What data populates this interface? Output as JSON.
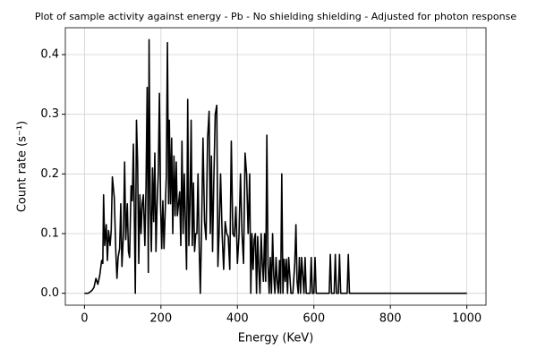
{
  "chart_data": {
    "type": "line",
    "title": "Plot of sample activity against energy - Pb - No shielding shielding - Adjusted for photon response",
    "x_label": "Energy (KeV)",
    "y_label": "Count rate (s⁻¹)",
    "xlim": [
      -50,
      1050
    ],
    "ylim": [
      -0.02,
      0.445
    ],
    "xticks": [
      0,
      200,
      400,
      600,
      800,
      1000
    ],
    "yticks": [
      {
        "value": 0,
        "label": "0.0"
      },
      0.1,
      0.2,
      0.3,
      0.4
    ],
    "grid": true,
    "series": [
      {
        "color": "#000000",
        "x": [
          0,
          10,
          20,
          25,
          30,
          35,
          40,
          45,
          48,
          50,
          53,
          57,
          60,
          63,
          67,
          70,
          73,
          78,
          82,
          85,
          88,
          92,
          95,
          98,
          102,
          105,
          108,
          112,
          115,
          118,
          122,
          125,
          128,
          131,
          133,
          136,
          139,
          142,
          145,
          148,
          151,
          154,
          158,
          161,
          164,
          167,
          169,
          172,
          175,
          178,
          181,
          184,
          187,
          190,
          193,
          196,
          199,
          202,
          205,
          208,
          211,
          214,
          217,
          220,
          222,
          225,
          228,
          231,
          234,
          237,
          240,
          243,
          246,
          249,
          252,
          255,
          258,
          261,
          264,
          267,
          270,
          273,
          276,
          279,
          282,
          285,
          288,
          291,
          294,
          297,
          300,
          303,
          306,
          310,
          314,
          318,
          322,
          326,
          329,
          332,
          335,
          338,
          342,
          346,
          349,
          352,
          356,
          360,
          364,
          368,
          372,
          376,
          380,
          384,
          388,
          392,
          396,
          400,
          404,
          408,
          412,
          416,
          420,
          424,
          428,
          432,
          435,
          438,
          441,
          444,
          447,
          450,
          453,
          456,
          459,
          462,
          465,
          468,
          471,
          474,
          477,
          480,
          483,
          486,
          489,
          492,
          495,
          498,
          501,
          504,
          507,
          510,
          513,
          516,
          519,
          522,
          525,
          528,
          531,
          534,
          537,
          540,
          545,
          550,
          553,
          556,
          559,
          562,
          565,
          568,
          571,
          574,
          577,
          580,
          590,
          593,
          596,
          600,
          603,
          606,
          640,
          643,
          646,
          653,
          656,
          659,
          664,
          667,
          670,
          687,
          690,
          693,
          1000
        ],
        "values": [
          0,
          0,
          0.005,
          0.01,
          0.025,
          0.015,
          0.03,
          0.055,
          0.05,
          0.165,
          0.08,
          0.115,
          0.055,
          0.105,
          0.08,
          0.105,
          0.195,
          0.16,
          0.07,
          0.025,
          0.06,
          0.075,
          0.15,
          0.045,
          0.1,
          0.22,
          0.09,
          0.15,
          0.07,
          0.06,
          0.18,
          0.155,
          0.25,
          0.1,
          0,
          0.29,
          0.22,
          0.05,
          0.165,
          0.1,
          0.15,
          0.165,
          0.08,
          0.18,
          0.345,
          0.035,
          0.425,
          0.15,
          0.07,
          0.21,
          0.12,
          0.235,
          0.07,
          0.15,
          0.2,
          0.335,
          0.15,
          0.075,
          0.155,
          0.075,
          0.135,
          0.195,
          0.42,
          0.15,
          0.29,
          0.15,
          0.26,
          0.1,
          0.23,
          0.13,
          0.22,
          0.13,
          0.15,
          0.17,
          0.08,
          0.255,
          0.1,
          0.2,
          0.12,
          0.04,
          0.325,
          0.08,
          0.15,
          0.29,
          0.08,
          0.185,
          0.07,
          0.1,
          0.1,
          0.2,
          0.08,
          0,
          0.1,
          0.26,
          0.12,
          0.09,
          0.26,
          0.305,
          0.1,
          0.23,
          0.07,
          0.18,
          0.3,
          0.315,
          0.045,
          0.1,
          0.2,
          0.1,
          0.04,
          0.12,
          0.1,
          0.095,
          0.04,
          0.255,
          0.1,
          0.095,
          0.145,
          0.05,
          0.095,
          0.2,
          0.1,
          0.05,
          0.235,
          0.2,
          0.1,
          0.2,
          0,
          0.1,
          0.04,
          0.09,
          0.1,
          0,
          0.095,
          0.04,
          0,
          0.1,
          0.05,
          0.02,
          0.1,
          0.02,
          0.265,
          0.05,
          0,
          0.06,
          0,
          0.1,
          0.03,
          0,
          0.06,
          0.02,
          0,
          0.055,
          0,
          0.2,
          0,
          0.057,
          0.02,
          0.057,
          0,
          0.06,
          0.03,
          0,
          0,
          0.05,
          0.115,
          0.02,
          0,
          0.06,
          0,
          0.06,
          0.03,
          0,
          0.06,
          0,
          0,
          0.06,
          0,
          0,
          0.06,
          0,
          0,
          0.065,
          0,
          0,
          0.065,
          0,
          0,
          0.065,
          0,
          0,
          0.065,
          0,
          0
        ]
      }
    ]
  }
}
